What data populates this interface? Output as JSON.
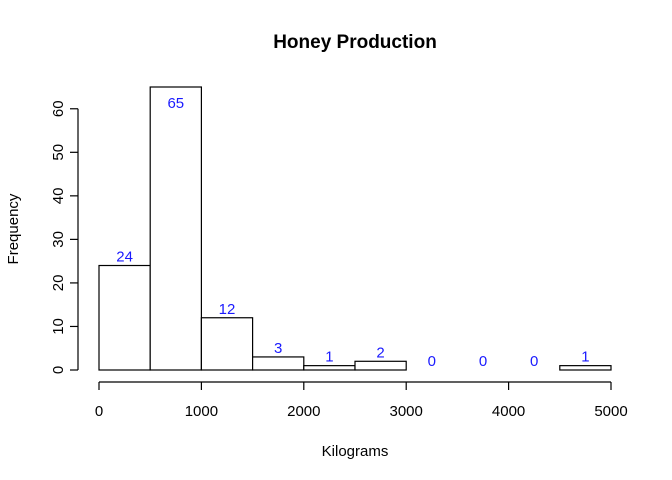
{
  "chart_data": {
    "type": "bar",
    "title": "Honey Production",
    "xlabel": "Kilograms",
    "ylabel": "Frequency",
    "bins": [
      {
        "start": 0,
        "end": 500,
        "count": 24,
        "label": "24"
      },
      {
        "start": 500,
        "end": 1000,
        "count": 65,
        "label": "65"
      },
      {
        "start": 1000,
        "end": 1500,
        "count": 12,
        "label": "12"
      },
      {
        "start": 1500,
        "end": 2000,
        "count": 3,
        "label": "3"
      },
      {
        "start": 2000,
        "end": 2500,
        "count": 1,
        "label": "1"
      },
      {
        "start": 2500,
        "end": 3000,
        "count": 2,
        "label": "2"
      },
      {
        "start": 3000,
        "end": 3500,
        "count": 0,
        "label": "0"
      },
      {
        "start": 3500,
        "end": 4000,
        "count": 0,
        "label": "0"
      },
      {
        "start": 4000,
        "end": 4500,
        "count": 0,
        "label": "0"
      },
      {
        "start": 4500,
        "end": 5000,
        "count": 1,
        "label": "1"
      }
    ],
    "xticks": [
      0,
      1000,
      2000,
      3000,
      4000,
      5000
    ],
    "yticks": [
      0,
      10,
      20,
      30,
      40,
      50,
      60
    ],
    "xlim": [
      0,
      5000
    ],
    "ylim": [
      0,
      65
    ],
    "grid": false,
    "colors": {
      "label": "#1a1aff",
      "bar_fill": "#ffffff",
      "bar_stroke": "#000000"
    }
  }
}
